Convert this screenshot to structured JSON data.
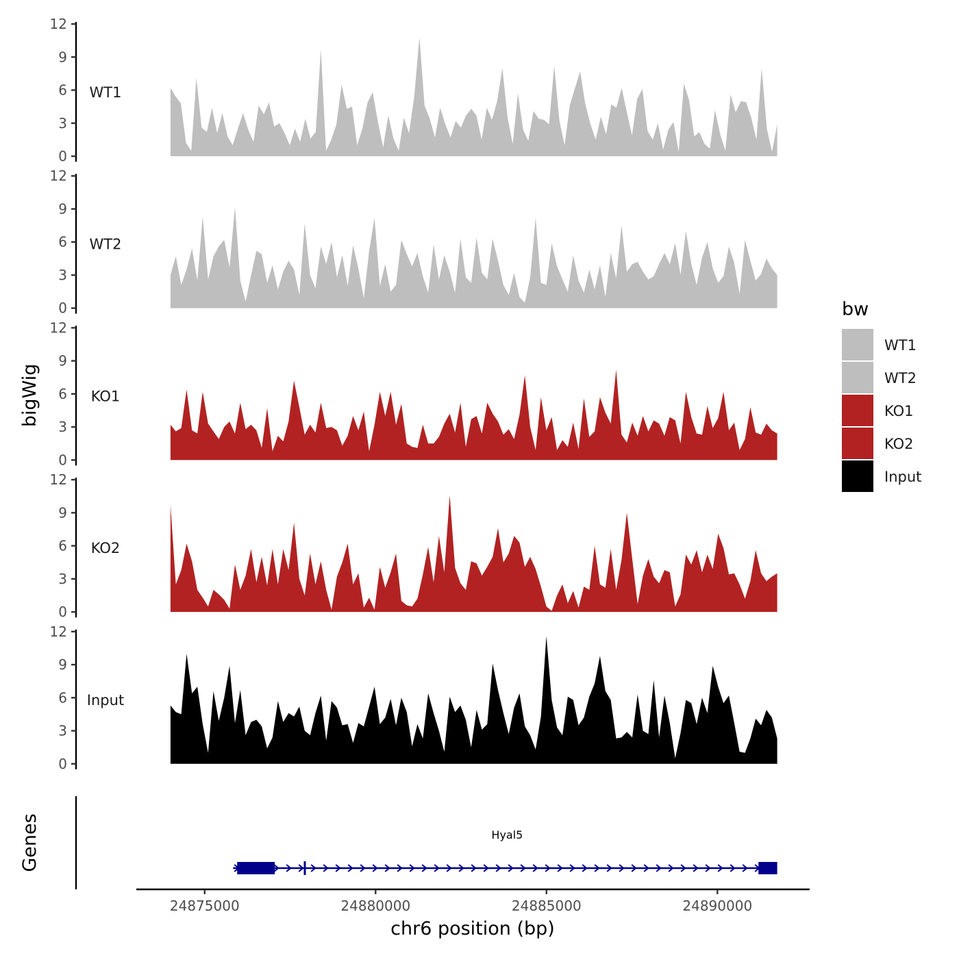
{
  "chart_data": {
    "type": "area",
    "title": "",
    "xlabel": "chr6 position (bp)",
    "ylabel": "bigWig",
    "genes_panel_label": "Genes",
    "xlim": [
      24873000,
      24892700
    ],
    "ylim": [
      0,
      12
    ],
    "x_ticks": [
      24875000,
      24880000,
      24885000,
      24890000
    ],
    "x_tick_labels": [
      "24875000",
      "24880000",
      "24885000",
      "24890000"
    ],
    "y_ticks": [
      0,
      3,
      6,
      9,
      12
    ],
    "y_tick_labels": [
      "0",
      "3",
      "6",
      "9",
      "12"
    ],
    "x_start": 24874000,
    "x_end": 24891750,
    "legend": {
      "title": "bw",
      "position": "right",
      "entries": [
        {
          "label": "WT1",
          "color": "#bebebe"
        },
        {
          "label": "WT2",
          "color": "#bebebe"
        },
        {
          "label": "KO1",
          "color": "#b22222"
        },
        {
          "label": "KO2",
          "color": "#b22222"
        },
        {
          "label": "Input",
          "color": "#000000"
        }
      ]
    },
    "series": [
      {
        "name": "WT1",
        "color": "#bebebe",
        "values": [
          6.2,
          5.4,
          4.8,
          1.2,
          0.5,
          7.1,
          2.6,
          2.2,
          4.4,
          2.1,
          3.9,
          1.8,
          1.0,
          2.5,
          3.9,
          2.4,
          1.3,
          4.6,
          3.8,
          4.9,
          2.7,
          3.0,
          2.1,
          1.0,
          2.5,
          1.3,
          3.4,
          1.6,
          2.2,
          9.7,
          0.5,
          1.5,
          2.9,
          6.5,
          4.3,
          4.5,
          1.0,
          2.5,
          4.9,
          5.8,
          3.1,
          0.8,
          3.7,
          1.6,
          0.5,
          3.5,
          2.1,
          5.4,
          10.8,
          4.6,
          3.4,
          1.7,
          4.4,
          2.9,
          1.7,
          3.2,
          2.6,
          3.7,
          4.3,
          3.7,
          1.5,
          4.4,
          3.3,
          5.0,
          8.0,
          3.5,
          1.1,
          5.7,
          2.4,
          1.4,
          4.1,
          3.4,
          3.3,
          2.9,
          8.2,
          3.2,
          1.0,
          4.6,
          6.2,
          7.7,
          4.7,
          2.9,
          1.5,
          3.6,
          2.0,
          4.7,
          4.4,
          6.2,
          4.0,
          1.9,
          5.2,
          6.1,
          2.3,
          1.5,
          3.0,
          0.6,
          2.4,
          3.1,
          0.4,
          6.6,
          5.1,
          1.8,
          2.2,
          1.1,
          0.7,
          4.2,
          2.0,
          0.5,
          5.6,
          4.0,
          5.0,
          4.9,
          3.5,
          1.5,
          8.0,
          2.5,
          0.4,
          2.9
        ]
      },
      {
        "name": "WT2",
        "color": "#bebebe",
        "values": [
          3.0,
          4.7,
          2.1,
          3.5,
          5.4,
          2.5,
          8.3,
          2.6,
          4.7,
          5.6,
          6.2,
          3.7,
          9.2,
          2.5,
          0.6,
          3.0,
          5.2,
          4.9,
          2.3,
          3.9,
          1.7,
          3.3,
          4.3,
          3.5,
          1.2,
          7.7,
          3.0,
          1.8,
          5.6,
          4.0,
          6.0,
          2.8,
          4.8,
          2.0,
          5.7,
          3.6,
          0.9,
          5.2,
          8.2,
          2.0,
          4.0,
          1.5,
          2.1,
          6.2,
          4.9,
          3.8,
          5.0,
          2.9,
          1.4,
          5.8,
          2.6,
          4.8,
          3.3,
          1.4,
          6.3,
          2.8,
          2.3,
          6.4,
          3.2,
          2.6,
          6.3,
          4.3,
          2.1,
          1.2,
          3.2,
          1.0,
          0.5,
          2.8,
          8.2,
          2.3,
          2.1,
          5.9,
          3.8,
          2.6,
          1.5,
          4.8,
          2.5,
          1.4,
          3.5,
          1.7,
          3.9,
          1.0,
          5.0,
          2.7,
          7.5,
          3.3,
          4.0,
          4.2,
          3.3,
          2.6,
          2.9,
          4.0,
          5.0,
          4.0,
          5.9,
          3.0,
          7.0,
          4.0,
          2.1,
          4.6,
          6.0,
          3.6,
          2.3,
          2.9,
          5.6,
          4.1,
          1.3,
          6.2,
          4.3,
          2.5,
          3.1,
          4.5,
          3.6,
          3.0
        ]
      },
      {
        "name": "KO1",
        "color": "#b22222",
        "values": [
          3.2,
          2.6,
          2.9,
          6.4,
          2.7,
          2.4,
          6.2,
          3.3,
          2.6,
          1.9,
          3.0,
          3.5,
          2.4,
          5.2,
          2.8,
          3.2,
          2.7,
          1.1,
          4.7,
          0.8,
          2.2,
          1.7,
          3.5,
          7.2,
          4.8,
          2.3,
          3.2,
          2.5,
          5.2,
          2.9,
          3.0,
          2.7,
          1.3,
          2.2,
          4.0,
          2.7,
          4.4,
          0.8,
          3.2,
          6.2,
          4.0,
          6.2,
          3.2,
          5.1,
          1.5,
          1.2,
          1.1,
          3.2,
          1.5,
          1.5,
          2.1,
          3.3,
          4.2,
          2.5,
          5.2,
          1.2,
          3.7,
          4.0,
          2.4,
          5.2,
          4.2,
          3.5,
          2.3,
          2.8,
          1.9,
          4.1,
          7.7,
          3.0,
          0.9,
          5.7,
          2.7,
          3.9,
          0.9,
          1.8,
          1.2,
          3.4,
          1.0,
          5.6,
          2.1,
          2.6,
          5.7,
          4.3,
          3.3,
          8.2,
          2.3,
          1.6,
          3.4,
          2.2,
          4.0,
          2.6,
          3.6,
          3.3,
          2.2,
          3.9,
          3.6,
          1.5,
          6.2,
          3.9,
          2.4,
          2.3,
          4.9,
          2.9,
          3.8,
          6.2,
          2.7,
          3.4,
          0.9,
          1.9,
          4.8,
          2.5,
          2.3,
          3.3,
          2.7,
          2.4
        ]
      },
      {
        "name": "KO2",
        "color": "#b22222",
        "values": [
          9.7,
          2.5,
          3.8,
          6.2,
          4.6,
          2.0,
          1.3,
          0.5,
          2.0,
          1.6,
          1.1,
          0.3,
          4.3,
          2.0,
          3.3,
          5.7,
          2.7,
          5.0,
          2.4,
          5.7,
          2.5,
          5.7,
          3.8,
          8.1,
          3.0,
          1.5,
          5.3,
          2.5,
          4.6,
          2.0,
          0.2,
          3.2,
          4.5,
          6.2,
          2.5,
          3.5,
          0.4,
          1.3,
          0.2,
          4.1,
          2.2,
          3.6,
          5.3,
          1.0,
          0.6,
          0.5,
          1.2,
          3.4,
          5.9,
          2.7,
          6.9,
          3.6,
          10.6,
          4.0,
          2.6,
          2.0,
          4.6,
          4.4,
          3.3,
          4.1,
          5.0,
          7.6,
          4.5,
          5.3,
          6.9,
          6.3,
          4.1,
          5.0,
          3.9,
          2.3,
          0.5,
          0.1,
          1.5,
          2.5,
          0.8,
          1.9,
          0.4,
          2.3,
          2.0,
          6.0,
          2.5,
          2.2,
          5.7,
          2.0,
          4.7,
          9.0,
          4.8,
          0.7,
          3.3,
          4.8,
          3.2,
          2.6,
          3.8,
          3.6,
          0.5,
          1.6,
          5.2,
          4.3,
          5.6,
          3.6,
          5.2,
          3.9,
          7.1,
          5.8,
          3.4,
          3.5,
          2.5,
          1.2,
          2.8,
          5.6,
          3.5,
          2.8,
          3.2,
          3.5
        ]
      },
      {
        "name": "Input",
        "color": "#000000",
        "values": [
          5.3,
          4.7,
          4.5,
          10.0,
          6.4,
          7.0,
          3.6,
          1.0,
          6.6,
          3.9,
          6.0,
          8.9,
          3.7,
          6.7,
          2.6,
          3.8,
          4.0,
          3.4,
          1.4,
          2.4,
          5.7,
          3.8,
          4.6,
          4.3,
          5.2,
          3.0,
          2.6,
          4.6,
          6.2,
          2.1,
          5.7,
          5.1,
          3.5,
          3.6,
          1.9,
          3.7,
          3.4,
          5.2,
          7.0,
          3.6,
          4.2,
          5.9,
          3.5,
          6.0,
          4.7,
          1.6,
          3.6,
          2.3,
          6.4,
          4.6,
          3.0,
          1.1,
          6.1,
          4.7,
          5.3,
          4.0,
          1.5,
          4.9,
          3.1,
          3.6,
          9.1,
          6.7,
          4.6,
          2.7,
          5.1,
          6.4,
          3.4,
          2.6,
          1.3,
          4.3,
          11.6,
          5.8,
          3.3,
          2.6,
          6.1,
          5.8,
          3.5,
          4.2,
          6.1,
          7.3,
          9.8,
          6.6,
          5.8,
          2.3,
          2.4,
          2.9,
          2.4,
          6.3,
          3.0,
          2.7,
          7.6,
          2.4,
          6.2,
          3.7,
          0.5,
          2.8,
          5.8,
          5.5,
          3.6,
          6.0,
          4.6,
          8.9,
          7.0,
          5.5,
          6.2,
          3.7,
          1.1,
          1.0,
          2.3,
          4.1,
          3.5,
          4.9,
          4.2,
          2.3
        ]
      }
    ],
    "genes": [
      {
        "name": "Hyal5",
        "start": 24875950,
        "end": 24891750,
        "strand": "+",
        "color": "#00008b",
        "exons": [
          [
            24875950,
            24877050
          ],
          [
            24877900,
            24877960
          ],
          [
            24891200,
            24891750
          ]
        ]
      }
    ]
  }
}
